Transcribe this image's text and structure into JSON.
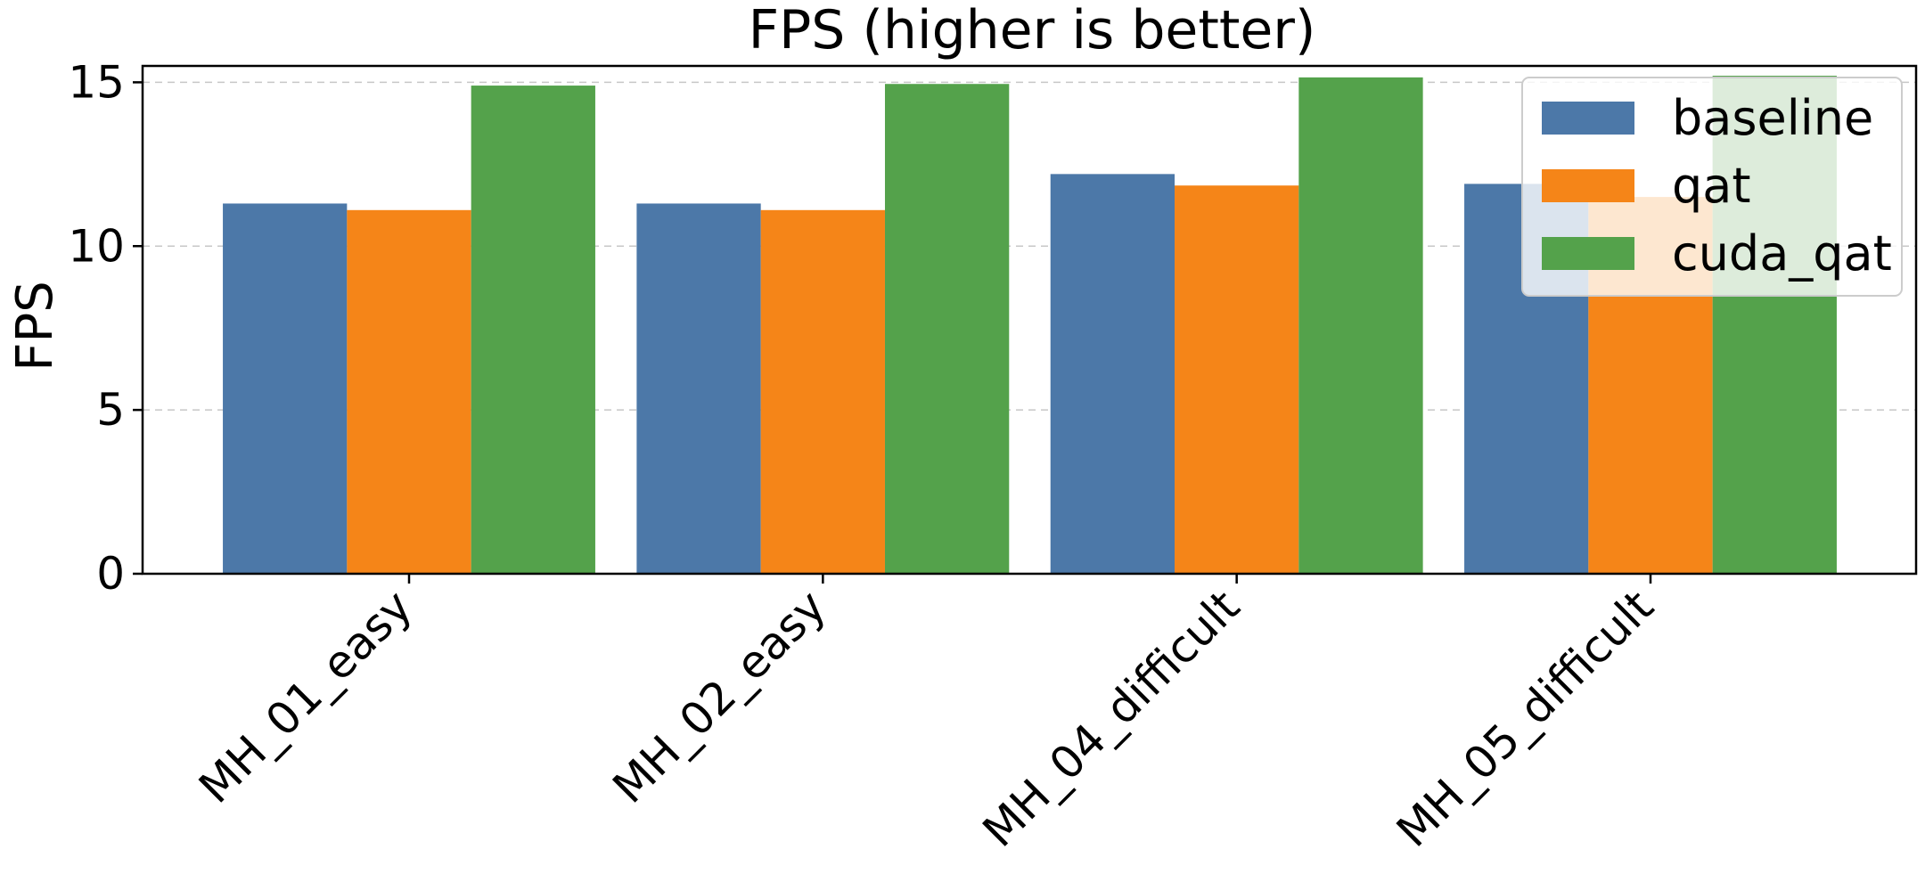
{
  "chart_data": {
    "type": "bar",
    "title": "FPS (higher is better)",
    "xlabel": "",
    "ylabel": "FPS",
    "categories": [
      "MH_01_easy",
      "MH_02_easy",
      "MH_04_difficult",
      "MH_05_difficult"
    ],
    "series": [
      {
        "name": "baseline",
        "color": "#4c78a8",
        "values": [
          11.3,
          11.3,
          12.2,
          11.9
        ]
      },
      {
        "name": "qat",
        "color": "#f58518",
        "values": [
          11.1,
          11.1,
          11.85,
          11.5
        ]
      },
      {
        "name": "cuda_qat",
        "color": "#54a24b",
        "values": [
          14.9,
          14.95,
          15.15,
          15.2
        ]
      }
    ],
    "ylim": [
      0,
      15.5
    ],
    "yticks": [
      0,
      5,
      10,
      15
    ],
    "grid": true,
    "legend": "top-right"
  }
}
